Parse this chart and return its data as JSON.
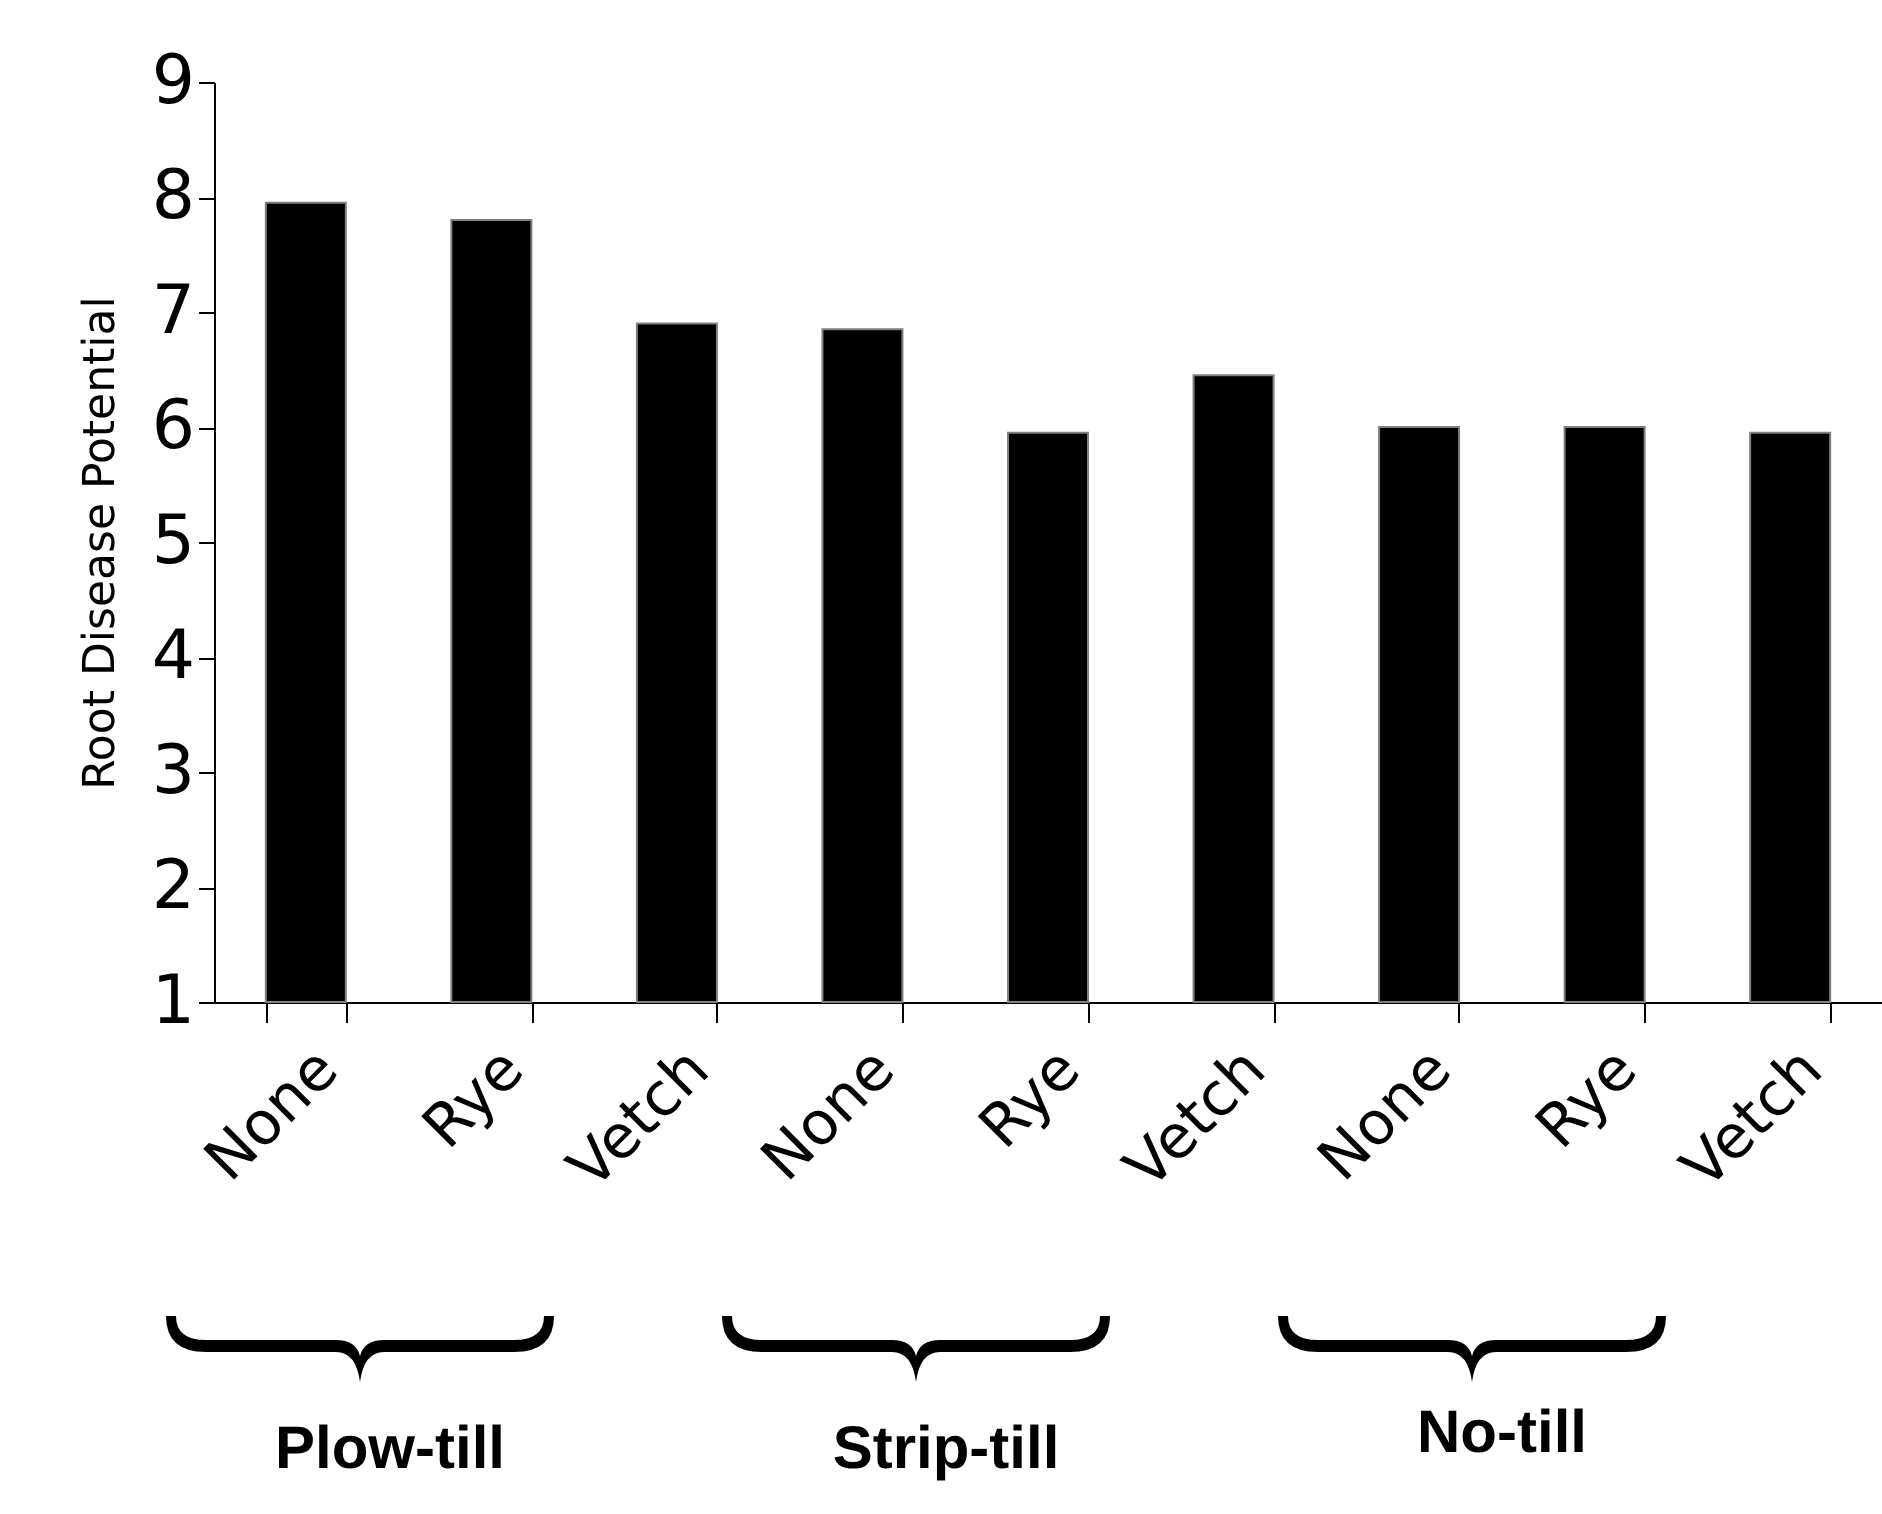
{
  "chart_data": {
    "type": "bar",
    "ylabel": "Root Disease Potential",
    "categories": [
      "None",
      "Rye",
      "Vetch",
      "None",
      "Rye",
      "Vetch",
      "None",
      "Rye",
      "Vetch"
    ],
    "values": [
      7.95,
      7.8,
      6.9,
      6.85,
      5.95,
      6.45,
      6.0,
      6.0,
      5.95
    ],
    "colors": [
      "#000000",
      "#000000",
      "#000000",
      "#000000",
      "#000000",
      "#000000",
      "#000000",
      "#000000",
      "#000000"
    ],
    "ylim": [
      1,
      9
    ],
    "yticks": [
      1,
      2,
      3,
      4,
      5,
      6,
      7,
      8,
      9
    ],
    "grid": false,
    "annotations": [
      "Plow-till",
      "Strip-till",
      "No-till"
    ]
  }
}
